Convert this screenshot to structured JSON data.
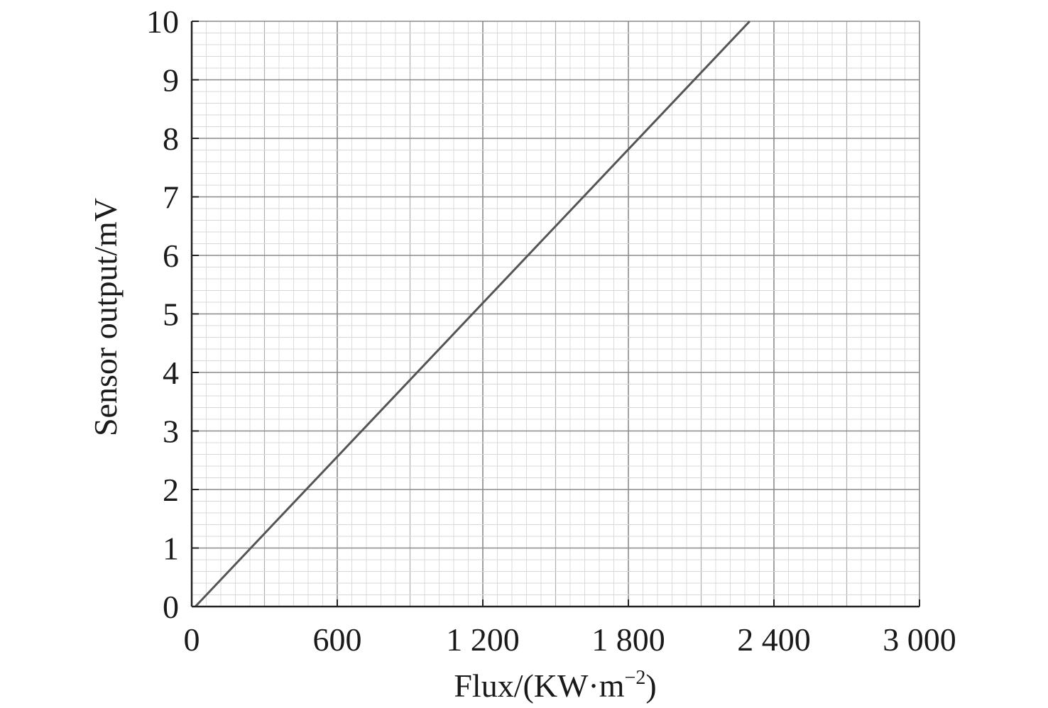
{
  "chart_data": {
    "type": "line",
    "title": "",
    "xlabel": "Flux/(KW·m",
    "xlabel_sup": "−2",
    "xlabel_end": ")",
    "ylabel": "Sensor output/mV",
    "xlim": [
      0,
      3000
    ],
    "ylim": [
      0,
      10
    ],
    "x_ticks": [
      0,
      600,
      1200,
      1800,
      2400,
      3000
    ],
    "x_tick_labels": [
      "0",
      "600",
      "1 200",
      "1 800",
      "2 400",
      "3 000"
    ],
    "y_ticks": [
      0,
      1,
      2,
      3,
      4,
      5,
      6,
      7,
      8,
      9,
      10
    ],
    "y_tick_labels": [
      "0",
      "1",
      "2",
      "3",
      "4",
      "5",
      "6",
      "7",
      "8",
      "9",
      "10"
    ],
    "grid": true,
    "series": [
      {
        "x": [
          15,
          2300
        ],
        "y": [
          0,
          10
        ]
      }
    ],
    "colors": {
      "line": "#555555",
      "major_grid": "#8a8a8a",
      "mid_grid": "#b0b0b0",
      "minor_grid": "#d8d8d8",
      "axis": "#222222"
    }
  }
}
